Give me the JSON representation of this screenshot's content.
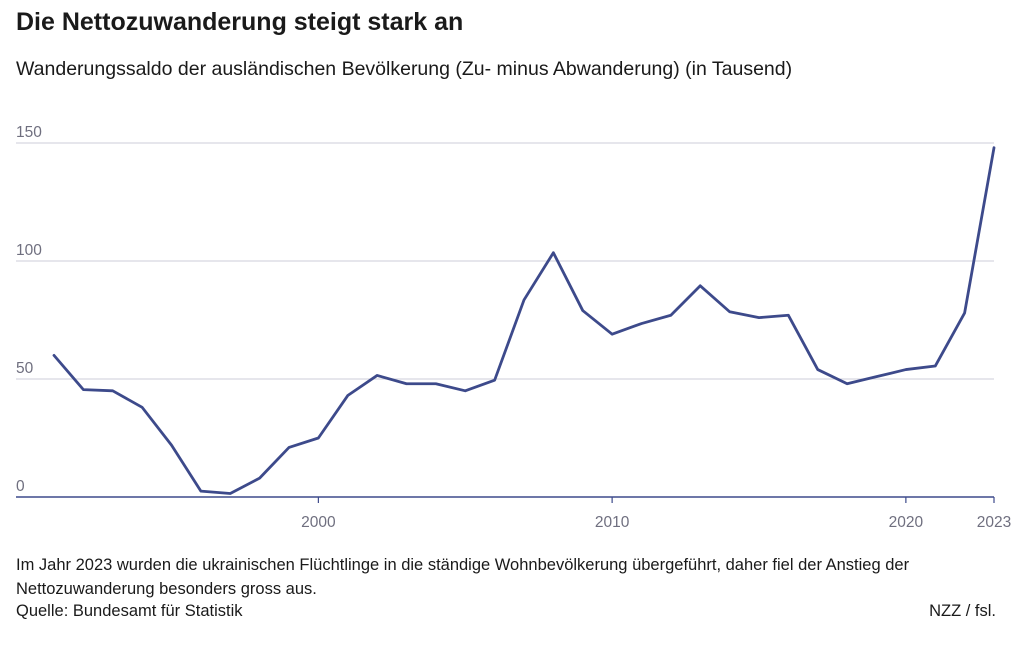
{
  "title": "Die Nettozuwanderung steigt stark an",
  "subtitle": "Wanderungssaldo der ausländischen Bevölkerung (Zu- minus Abwanderung) (in Tausend)",
  "note": "Im Jahr 2023 wurden die ukrainischen Flüchtlinge in die ständige Wohnbevölkerung übergeführt, daher fiel der Anstieg der Nettozuwanderung besonders gross aus.",
  "source": "Quelle: Bundesamt für Statistik",
  "credit": "NZZ / fsl.",
  "chart_data": {
    "type": "line",
    "title": "Die Nettozuwanderung steigt stark an",
    "subtitle": "Wanderungssaldo der ausländischen Bevölkerung (Zu- minus Abwanderung) (in Tausend)",
    "xlabel": "",
    "ylabel": "",
    "x": [
      1991,
      1992,
      1993,
      1994,
      1995,
      1996,
      1997,
      1998,
      1999,
      2000,
      2001,
      2002,
      2003,
      2004,
      2005,
      2006,
      2007,
      2008,
      2009,
      2010,
      2011,
      2012,
      2013,
      2014,
      2015,
      2016,
      2017,
      2018,
      2019,
      2020,
      2021,
      2022,
      2023
    ],
    "series": [
      {
        "values": [
          60,
          45.5,
          45,
          38,
          22,
          2.5,
          1.5,
          8,
          21,
          25,
          43,
          51.5,
          48,
          48,
          45,
          49.5,
          83.5,
          103.5,
          79,
          69,
          73.5,
          77,
          89.5,
          78.5,
          76,
          77,
          54,
          48,
          51,
          54,
          55.5,
          78,
          148
        ]
      }
    ],
    "xlim": [
      1991,
      2023
    ],
    "ylim": [
      0,
      150
    ],
    "x_ticks": [
      "2000",
      "2010",
      "2020",
      "2023"
    ],
    "x_tick_values": [
      2000,
      2010,
      2020,
      2023
    ],
    "y_ticks": [
      "0",
      "50",
      "100",
      "150"
    ],
    "y_tick_values": [
      0,
      50,
      100,
      150
    ],
    "grid": true,
    "line_color": "#3d4a8b",
    "grid_color": "#d8d8e0",
    "axis_color": "#3d4a8b"
  }
}
